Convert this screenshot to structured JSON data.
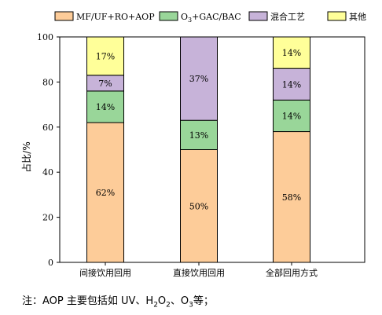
{
  "chart_data": {
    "type": "bar",
    "stacked": true,
    "categories": [
      "间接饮用回用",
      "直接饮用回用",
      "全部回用方式"
    ],
    "series": [
      {
        "name": "MF/UF+RO+AOP",
        "color": "#FDCC99",
        "values": [
          62,
          50,
          58
        ]
      },
      {
        "name": "O3+GAC/BAC",
        "color": "#99D699",
        "values": [
          14,
          13,
          14
        ]
      },
      {
        "name": "混合工艺",
        "color": "#C7B3D9",
        "values": [
          7,
          37,
          14
        ]
      },
      {
        "name": "其他",
        "color": "#FFFF99",
        "values": [
          17,
          0,
          14
        ]
      }
    ],
    "value_labels": [
      [
        "62%",
        "50%",
        "58%"
      ],
      [
        "14%",
        "13%",
        "14%"
      ],
      [
        "7%",
        "37%",
        "14%"
      ],
      [
        "17%",
        "",
        "14%"
      ]
    ],
    "ylabel": "占比/%",
    "ylim": [
      0,
      100
    ],
    "yticks": [
      0,
      20,
      40,
      60,
      80,
      100
    ],
    "grid": false,
    "legend_position": "top"
  },
  "note": {
    "prefix": "注：AOP 主要包括如 UV、H",
    "sub1": "2",
    "mid1": "O",
    "sub2": "2",
    "mid2": "、O",
    "sub3": "3",
    "suffix": "等；"
  }
}
